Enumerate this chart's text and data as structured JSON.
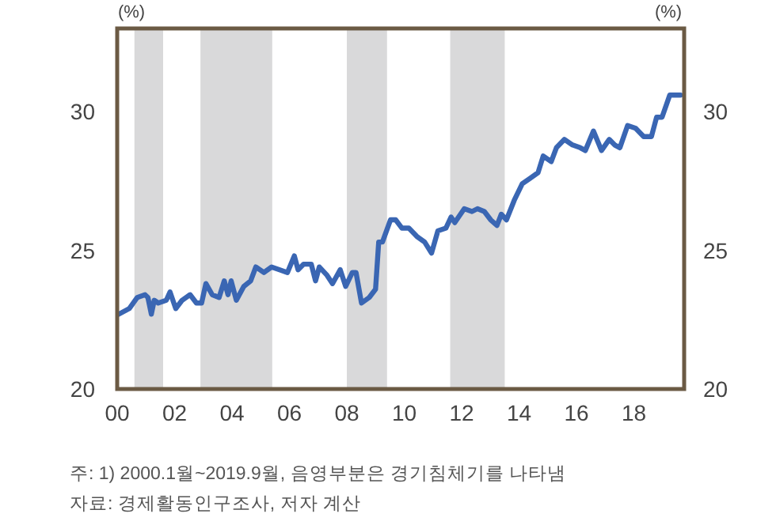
{
  "chart_data": {
    "type": "line",
    "ylabel": "(%)",
    "y2label": "(%)",
    "x": [
      2000.06,
      2000.42,
      2000.7,
      2000.97,
      2001.07,
      2001.19,
      2001.29,
      2001.43,
      2001.71,
      2001.84,
      2002.04,
      2002.26,
      2002.54,
      2002.76,
      2002.94,
      2003.09,
      2003.31,
      2003.55,
      2003.73,
      2003.86,
      2003.97,
      2004.15,
      2004.41,
      2004.65,
      2004.83,
      2005.11,
      2005.38,
      2005.66,
      2005.93,
      2006.17,
      2006.3,
      2006.49,
      2006.76,
      2006.91,
      2007.04,
      2007.31,
      2007.5,
      2007.77,
      2007.96,
      2008.19,
      2008.32,
      2008.51,
      2008.78,
      2009.0,
      2009.11,
      2009.24,
      2009.52,
      2009.7,
      2009.92,
      2010.16,
      2010.44,
      2010.71,
      2010.95,
      2011.17,
      2011.45,
      2011.63,
      2011.76,
      2012.09,
      2012.36,
      2012.55,
      2012.79,
      2013.01,
      2013.23,
      2013.38,
      2013.56,
      2013.83,
      2014.11,
      2014.39,
      2014.66,
      2014.84,
      2015.12,
      2015.3,
      2015.58,
      2015.86,
      2016.13,
      2016.31,
      2016.59,
      2016.87,
      2017.14,
      2017.33,
      2017.51,
      2017.78,
      2018.06,
      2018.34,
      2018.61,
      2018.79,
      2018.98,
      2019.25,
      2019.62
    ],
    "values": [
      22.7,
      22.9,
      23.3,
      23.4,
      23.3,
      22.7,
      23.2,
      23.1,
      23.2,
      23.5,
      22.9,
      23.2,
      23.4,
      23.1,
      23.1,
      23.8,
      23.4,
      23.3,
      23.9,
      23.4,
      23.9,
      23.2,
      23.7,
      23.9,
      24.4,
      24.2,
      24.4,
      24.3,
      24.2,
      24.8,
      24.3,
      24.5,
      24.5,
      23.9,
      24.4,
      24.1,
      23.8,
      24.3,
      23.7,
      24.2,
      24.2,
      23.1,
      23.3,
      23.6,
      25.3,
      25.3,
      26.1,
      26.1,
      25.8,
      25.8,
      25.5,
      25.3,
      24.9,
      25.7,
      25.8,
      26.2,
      26.0,
      26.5,
      26.4,
      26.5,
      26.4,
      26.1,
      25.9,
      26.3,
      26.1,
      26.8,
      27.4,
      27.6,
      27.8,
      28.4,
      28.2,
      28.7,
      29.0,
      28.8,
      28.7,
      28.6,
      29.3,
      28.6,
      29.0,
      28.8,
      28.7,
      29.5,
      29.4,
      29.1,
      29.1,
      29.8,
      29.8,
      30.6,
      30.6
    ],
    "color": "#3a66b3",
    "line_style": "solid",
    "marker": "none",
    "grid": false,
    "xlim": [
      2000,
      2019.75
    ],
    "xticks": [
      {
        "value": 2000,
        "label": "00"
      },
      {
        "value": 2002,
        "label": "02"
      },
      {
        "value": 2004,
        "label": "04"
      },
      {
        "value": 2006,
        "label": "06"
      },
      {
        "value": 2008,
        "label": "08"
      },
      {
        "value": 2010,
        "label": "10"
      },
      {
        "value": 2012,
        "label": "12"
      },
      {
        "value": 2014,
        "label": "14"
      },
      {
        "value": 2016,
        "label": "16"
      },
      {
        "value": 2018,
        "label": "18"
      }
    ],
    "ylim": [
      20,
      33
    ],
    "yticks": [
      20,
      25,
      30
    ],
    "y2lim": [
      20,
      33
    ],
    "y2ticks": [
      20,
      25,
      30
    ],
    "bands": [
      {
        "axis": "x",
        "from": 2000.6,
        "to": 2001.6,
        "color": "#d9d9da"
      },
      {
        "axis": "x",
        "from": 2002.9,
        "to": 2005.4,
        "color": "#d9d9da"
      },
      {
        "axis": "x",
        "from": 2008.0,
        "to": 2009.4,
        "color": "#d9d9da"
      },
      {
        "axis": "x",
        "from": 2011.6,
        "to": 2013.5,
        "color": "#d9d9da"
      }
    ],
    "annotations": [
      "주: 1) 2000.1월~2019.9월, 음영부분은 경기침체기를 나타냄",
      "자료: 경제활동인구조사, 저자 계산"
    ]
  }
}
